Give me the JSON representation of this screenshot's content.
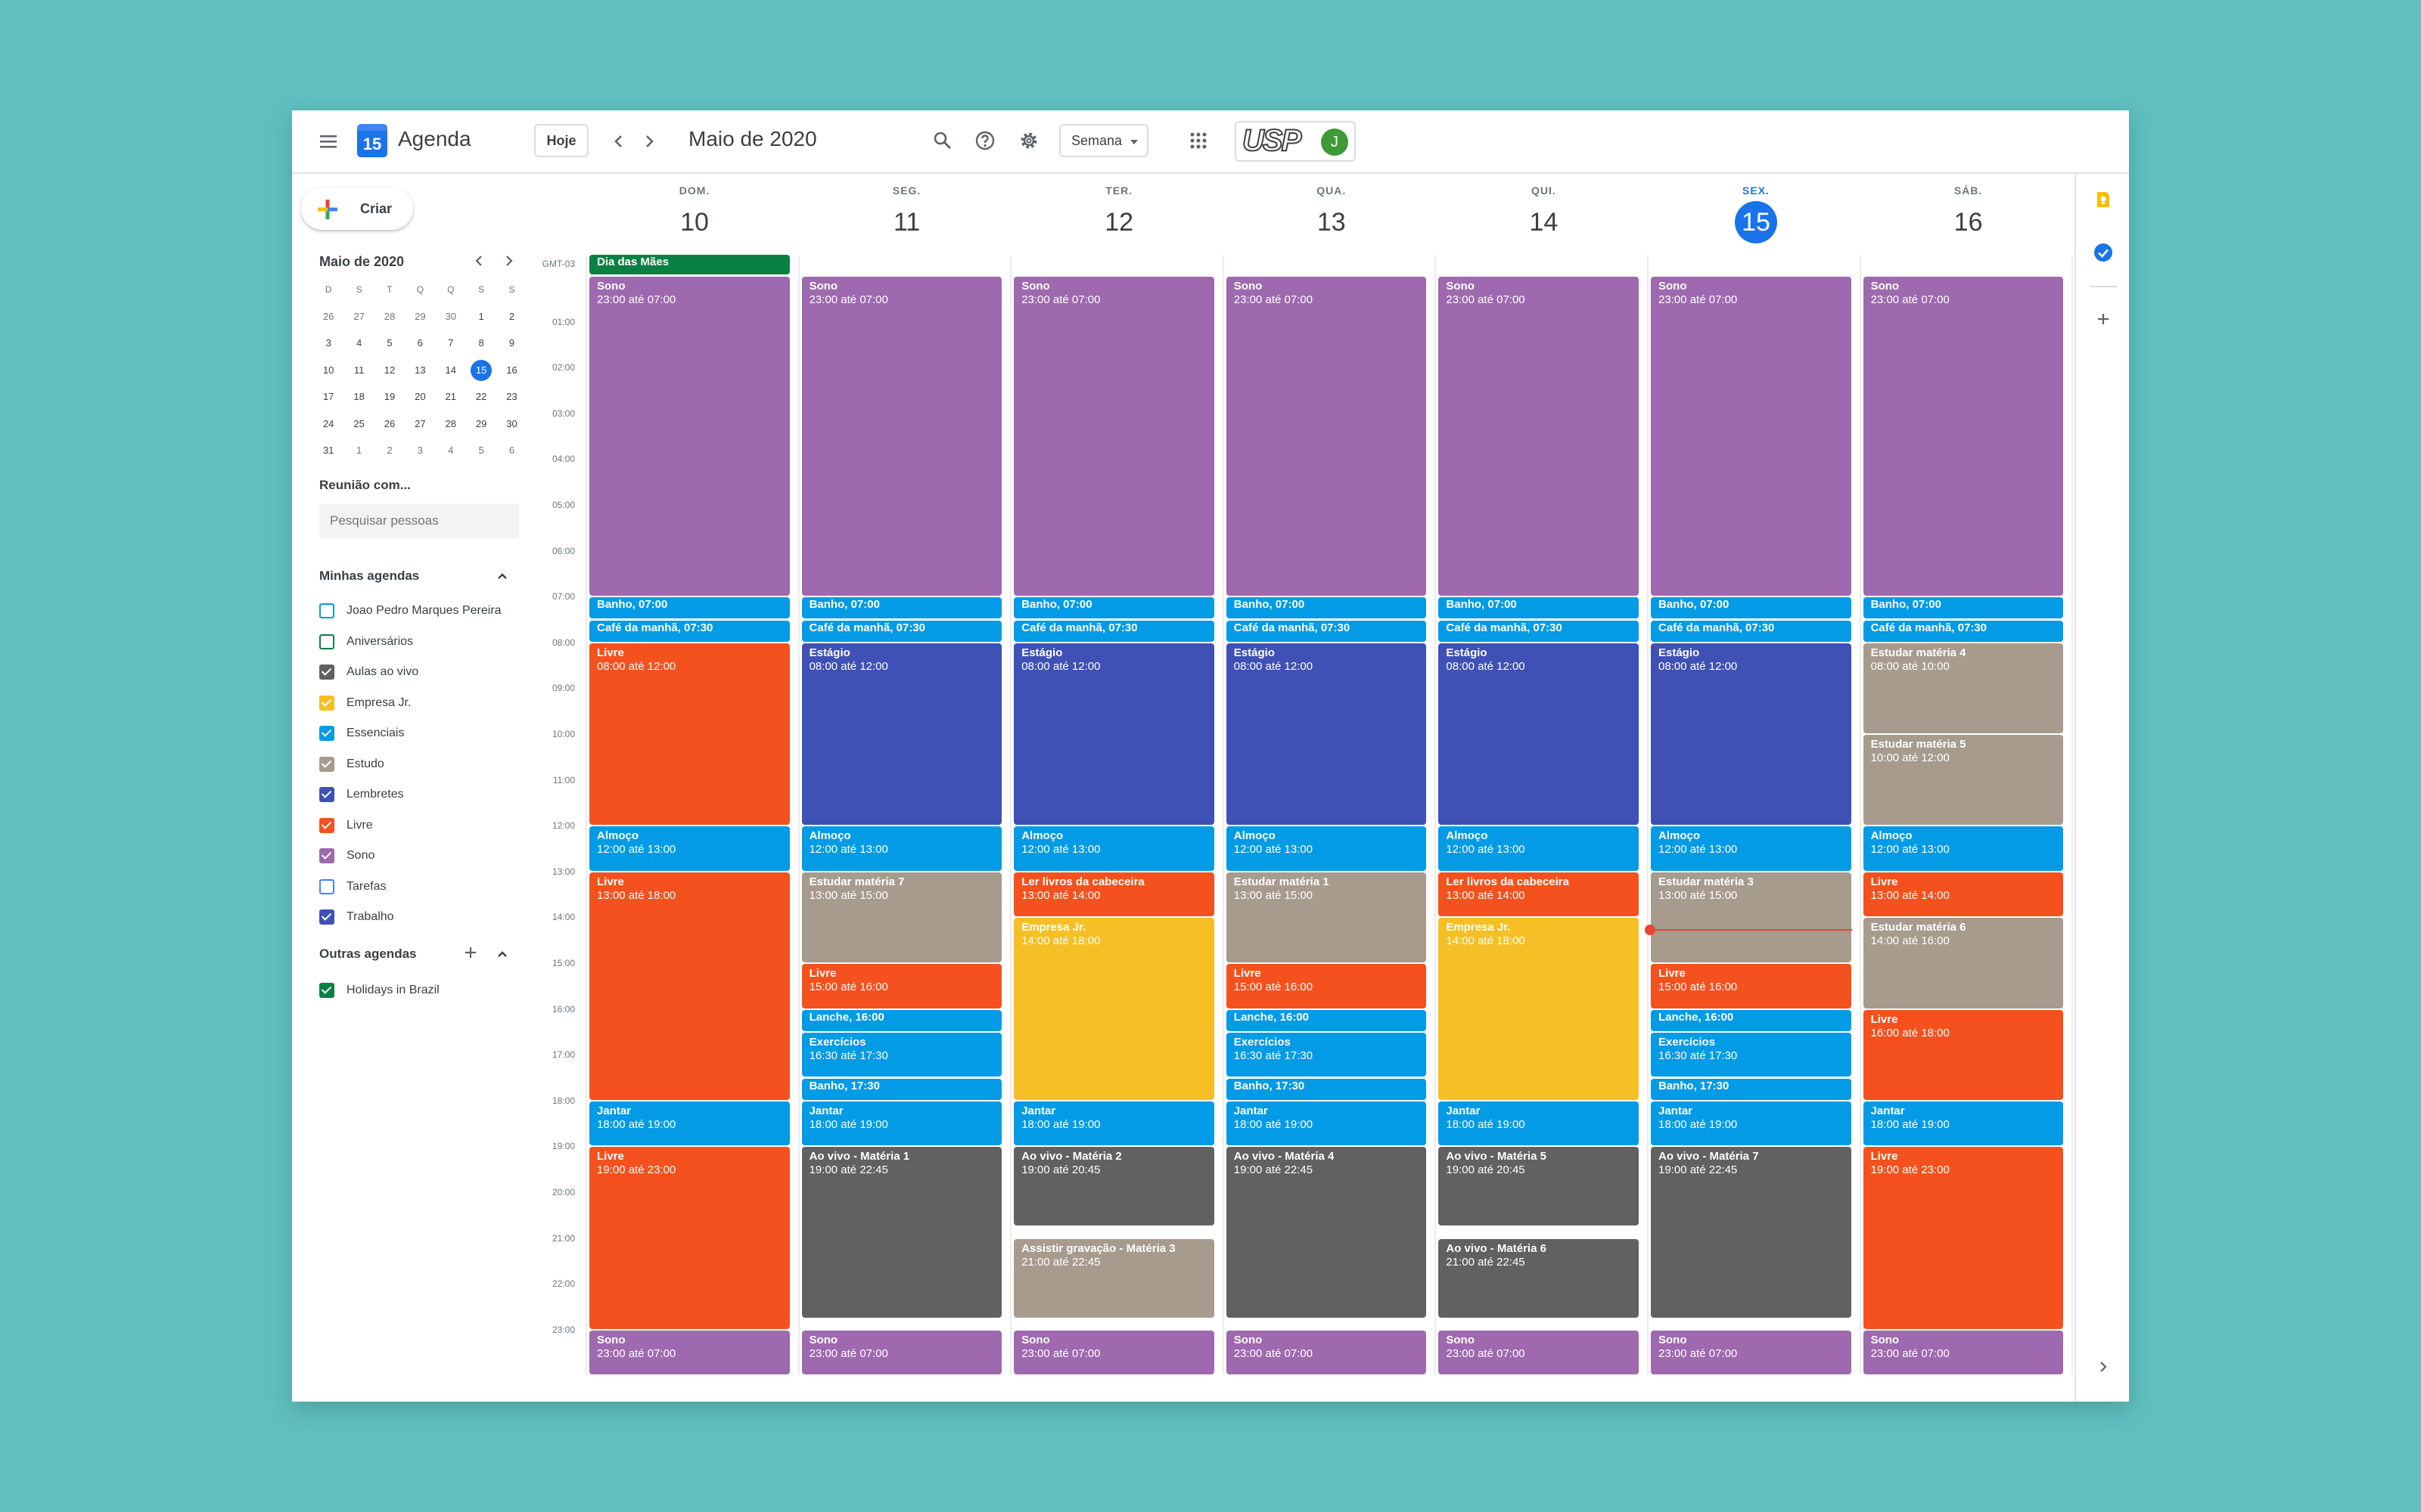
{
  "app": {
    "title": "Agenda",
    "logo_day": "15"
  },
  "header": {
    "today_button": "Hoje",
    "month_title": "Maio de 2020",
    "view_select": "Semana",
    "brand_logo": "USP",
    "avatar_initial": "J"
  },
  "sidebar": {
    "create_label": "Criar",
    "mini_cal": {
      "title": "Maio de 2020",
      "dow": [
        "D",
        "S",
        "T",
        "Q",
        "Q",
        "S",
        "S"
      ],
      "weeks": [
        [
          "26",
          "27",
          "28",
          "29",
          "30",
          "1",
          "2"
        ],
        [
          "3",
          "4",
          "5",
          "6",
          "7",
          "8",
          "9"
        ],
        [
          "10",
          "11",
          "12",
          "13",
          "14",
          "15",
          "16"
        ],
        [
          "17",
          "18",
          "19",
          "20",
          "21",
          "22",
          "23"
        ],
        [
          "24",
          "25",
          "26",
          "27",
          "28",
          "29",
          "30"
        ],
        [
          "31",
          "1",
          "2",
          "3",
          "4",
          "5",
          "6"
        ]
      ],
      "today": "15"
    },
    "meet_title": "Reunião com...",
    "search_placeholder": "Pesquisar pessoas",
    "my_calendars_title": "Minhas agendas",
    "my_calendars": [
      {
        "label": "Joao Pedro Marques Pereira",
        "color": "#039be5",
        "checked": false
      },
      {
        "label": "Aniversários",
        "color": "#0b8043",
        "checked": false
      },
      {
        "label": "Aulas ao vivo",
        "color": "#616161",
        "checked": true
      },
      {
        "label": "Empresa Jr.",
        "color": "#f6bf26",
        "checked": true
      },
      {
        "label": "Essenciais",
        "color": "#039be5",
        "checked": true
      },
      {
        "label": "Estudo",
        "color": "#a79b8e",
        "checked": true
      },
      {
        "label": "Lembretes",
        "color": "#3f51b5",
        "checked": true
      },
      {
        "label": "Livre",
        "color": "#f4511e",
        "checked": true
      },
      {
        "label": "Sono",
        "color": "#9e69af",
        "checked": true
      },
      {
        "label": "Tarefas",
        "color": "#4285f4",
        "checked": false
      },
      {
        "label": "Trabalho",
        "color": "#3f51b5",
        "checked": true
      }
    ],
    "other_calendars_title": "Outras agendas",
    "other_calendars": [
      {
        "label": "Holidays in Brazil",
        "color": "#0b8043",
        "checked": true
      }
    ]
  },
  "week": {
    "timezone": "GMT-03",
    "days": [
      {
        "dow": "DOM.",
        "num": "10",
        "today": false
      },
      {
        "dow": "SEG.",
        "num": "11",
        "today": false
      },
      {
        "dow": "TER.",
        "num": "12",
        "today": false
      },
      {
        "dow": "QUA.",
        "num": "13",
        "today": false
      },
      {
        "dow": "QUI.",
        "num": "14",
        "today": false
      },
      {
        "dow": "SEX.",
        "num": "15",
        "today": true
      },
      {
        "dow": "SÁB.",
        "num": "16",
        "today": false
      }
    ],
    "hours": [
      "01:00",
      "02:00",
      "03:00",
      "04:00",
      "05:00",
      "06:00",
      "07:00",
      "08:00",
      "09:00",
      "10:00",
      "11:00",
      "12:00",
      "13:00",
      "14:00",
      "15:00",
      "16:00",
      "17:00",
      "18:00",
      "19:00",
      "20:00",
      "21:00",
      "22:00",
      "23:00"
    ],
    "current_time": "14:15",
    "all_day": [
      {
        "day": 0,
        "title": "Dia das Mães",
        "color": "#0b8043"
      }
    ],
    "events": [
      {
        "day": 0,
        "start": 0,
        "end": 7,
        "title": "Sono",
        "time": "23:00 até 07:00",
        "color": "#9e69af"
      },
      {
        "day": 0,
        "start": 7,
        "end": 7.5,
        "title": "Banho, 07:00",
        "time": "",
        "color": "#039be5"
      },
      {
        "day": 0,
        "start": 7.5,
        "end": 8,
        "title": "Café da manhã, 07:30",
        "time": "",
        "color": "#039be5"
      },
      {
        "day": 0,
        "start": 8,
        "end": 12,
        "title": "Livre",
        "time": "08:00 até 12:00",
        "color": "#f4511e"
      },
      {
        "day": 0,
        "start": 12,
        "end": 13,
        "title": "Almoço",
        "time": "12:00 até 13:00",
        "color": "#039be5"
      },
      {
        "day": 0,
        "start": 13,
        "end": 18,
        "title": "Livre",
        "time": "13:00 até 18:00",
        "color": "#f4511e"
      },
      {
        "day": 0,
        "start": 18,
        "end": 19,
        "title": "Jantar",
        "time": "18:00 até 19:00",
        "color": "#039be5"
      },
      {
        "day": 0,
        "start": 19,
        "end": 23,
        "title": "Livre",
        "time": "19:00 até 23:00",
        "color": "#f4511e"
      },
      {
        "day": 0,
        "start": 23,
        "end": 24,
        "title": "Sono",
        "time": "23:00 até 07:00",
        "color": "#9e69af"
      },
      {
        "day": 1,
        "start": 0,
        "end": 7,
        "title": "Sono",
        "time": "23:00 até 07:00",
        "color": "#9e69af"
      },
      {
        "day": 1,
        "start": 7,
        "end": 7.5,
        "title": "Banho, 07:00",
        "time": "",
        "color": "#039be5"
      },
      {
        "day": 1,
        "start": 7.5,
        "end": 8,
        "title": "Café da manhã, 07:30",
        "time": "",
        "color": "#039be5"
      },
      {
        "day": 1,
        "start": 8,
        "end": 12,
        "title": "Estágio",
        "time": "08:00 até 12:00",
        "color": "#3f51b5"
      },
      {
        "day": 1,
        "start": 12,
        "end": 13,
        "title": "Almoço",
        "time": "12:00 até 13:00",
        "color": "#039be5"
      },
      {
        "day": 1,
        "start": 13,
        "end": 15,
        "title": "Estudar matéria 7",
        "time": "13:00 até 15:00",
        "color": "#a79b8e"
      },
      {
        "day": 1,
        "start": 15,
        "end": 16,
        "title": "Livre",
        "time": "15:00 até 16:00",
        "color": "#f4511e"
      },
      {
        "day": 1,
        "start": 16,
        "end": 16.5,
        "title": "Lanche, 16:00",
        "time": "",
        "color": "#039be5"
      },
      {
        "day": 1,
        "start": 16.5,
        "end": 17.5,
        "title": "Exercícios",
        "time": "16:30 até 17:30",
        "color": "#039be5"
      },
      {
        "day": 1,
        "start": 17.5,
        "end": 18,
        "title": "Banho, 17:30",
        "time": "",
        "color": "#039be5"
      },
      {
        "day": 1,
        "start": 18,
        "end": 19,
        "title": "Jantar",
        "time": "18:00 até 19:00",
        "color": "#039be5"
      },
      {
        "day": 1,
        "start": 19,
        "end": 22.75,
        "title": "Ao vivo - Matéria 1",
        "time": "19:00 até 22:45",
        "color": "#616161"
      },
      {
        "day": 1,
        "start": 23,
        "end": 24,
        "title": "Sono",
        "time": "23:00 até 07:00",
        "color": "#9e69af"
      },
      {
        "day": 2,
        "start": 0,
        "end": 7,
        "title": "Sono",
        "time": "23:00 até 07:00",
        "color": "#9e69af"
      },
      {
        "day": 2,
        "start": 7,
        "end": 7.5,
        "title": "Banho, 07:00",
        "time": "",
        "color": "#039be5"
      },
      {
        "day": 2,
        "start": 7.5,
        "end": 8,
        "title": "Café da manhã, 07:30",
        "time": "",
        "color": "#039be5"
      },
      {
        "day": 2,
        "start": 8,
        "end": 12,
        "title": "Estágio",
        "time": "08:00 até 12:00",
        "color": "#3f51b5"
      },
      {
        "day": 2,
        "start": 12,
        "end": 13,
        "title": "Almoço",
        "time": "12:00 até 13:00",
        "color": "#039be5"
      },
      {
        "day": 2,
        "start": 13,
        "end": 14,
        "title": "Ler livros da cabeceira",
        "time": "13:00 até 14:00",
        "color": "#f4511e"
      },
      {
        "day": 2,
        "start": 14,
        "end": 18,
        "title": "Empresa Jr.",
        "time": "14:00 até 18:00",
        "color": "#f6bf26"
      },
      {
        "day": 2,
        "start": 18,
        "end": 19,
        "title": "Jantar",
        "time": "18:00 até 19:00",
        "color": "#039be5"
      },
      {
        "day": 2,
        "start": 19,
        "end": 20.75,
        "title": "Ao vivo - Matéria 2",
        "time": "19:00 até 20:45",
        "color": "#616161"
      },
      {
        "day": 2,
        "start": 21,
        "end": 22.75,
        "title": "Assistir gravação - Matéria 3",
        "time": "21:00 até 22:45",
        "color": "#a79b8e"
      },
      {
        "day": 2,
        "start": 23,
        "end": 24,
        "title": "Sono",
        "time": "23:00 até 07:00",
        "color": "#9e69af"
      },
      {
        "day": 3,
        "start": 0,
        "end": 7,
        "title": "Sono",
        "time": "23:00 até 07:00",
        "color": "#9e69af"
      },
      {
        "day": 3,
        "start": 7,
        "end": 7.5,
        "title": "Banho, 07:00",
        "time": "",
        "color": "#039be5"
      },
      {
        "day": 3,
        "start": 7.5,
        "end": 8,
        "title": "Café da manhã, 07:30",
        "time": "",
        "color": "#039be5"
      },
      {
        "day": 3,
        "start": 8,
        "end": 12,
        "title": "Estágio",
        "time": "08:00 até 12:00",
        "color": "#3f51b5"
      },
      {
        "day": 3,
        "start": 12,
        "end": 13,
        "title": "Almoço",
        "time": "12:00 até 13:00",
        "color": "#039be5"
      },
      {
        "day": 3,
        "start": 13,
        "end": 15,
        "title": "Estudar matéria 1",
        "time": "13:00 até 15:00",
        "color": "#a79b8e"
      },
      {
        "day": 3,
        "start": 15,
        "end": 16,
        "title": "Livre",
        "time": "15:00 até 16:00",
        "color": "#f4511e"
      },
      {
        "day": 3,
        "start": 16,
        "end": 16.5,
        "title": "Lanche, 16:00",
        "time": "",
        "color": "#039be5"
      },
      {
        "day": 3,
        "start": 16.5,
        "end": 17.5,
        "title": "Exercícios",
        "time": "16:30 até 17:30",
        "color": "#039be5"
      },
      {
        "day": 3,
        "start": 17.5,
        "end": 18,
        "title": "Banho, 17:30",
        "time": "",
        "color": "#039be5"
      },
      {
        "day": 3,
        "start": 18,
        "end": 19,
        "title": "Jantar",
        "time": "18:00 até 19:00",
        "color": "#039be5"
      },
      {
        "day": 3,
        "start": 19,
        "end": 22.75,
        "title": "Ao vivo - Matéria 4",
        "time": "19:00 até 22:45",
        "color": "#616161"
      },
      {
        "day": 3,
        "start": 23,
        "end": 24,
        "title": "Sono",
        "time": "23:00 até 07:00",
        "color": "#9e69af"
      },
      {
        "day": 4,
        "start": 0,
        "end": 7,
        "title": "Sono",
        "time": "23:00 até 07:00",
        "color": "#9e69af"
      },
      {
        "day": 4,
        "start": 7,
        "end": 7.5,
        "title": "Banho, 07:00",
        "time": "",
        "color": "#039be5"
      },
      {
        "day": 4,
        "start": 7.5,
        "end": 8,
        "title": "Café da manhã, 07:30",
        "time": "",
        "color": "#039be5"
      },
      {
        "day": 4,
        "start": 8,
        "end": 12,
        "title": "Estágio",
        "time": "08:00 até 12:00",
        "color": "#3f51b5"
      },
      {
        "day": 4,
        "start": 12,
        "end": 13,
        "title": "Almoço",
        "time": "12:00 até 13:00",
        "color": "#039be5"
      },
      {
        "day": 4,
        "start": 13,
        "end": 14,
        "title": "Ler livros da cabeceira",
        "time": "13:00 até 14:00",
        "color": "#f4511e"
      },
      {
        "day": 4,
        "start": 14,
        "end": 18,
        "title": "Empresa Jr.",
        "time": "14:00 até 18:00",
        "color": "#f6bf26"
      },
      {
        "day": 4,
        "start": 18,
        "end": 19,
        "title": "Jantar",
        "time": "18:00 até 19:00",
        "color": "#039be5"
      },
      {
        "day": 4,
        "start": 19,
        "end": 20.75,
        "title": "Ao vivo - Matéria 5",
        "time": "19:00 até 20:45",
        "color": "#616161"
      },
      {
        "day": 4,
        "start": 21,
        "end": 22.75,
        "title": "Ao vivo - Matéria 6",
        "time": "21:00 até 22:45",
        "color": "#616161"
      },
      {
        "day": 4,
        "start": 23,
        "end": 24,
        "title": "Sono",
        "time": "23:00 até 07:00",
        "color": "#9e69af"
      },
      {
        "day": 5,
        "start": 0,
        "end": 7,
        "title": "Sono",
        "time": "23:00 até 07:00",
        "color": "#9e69af"
      },
      {
        "day": 5,
        "start": 7,
        "end": 7.5,
        "title": "Banho, 07:00",
        "time": "",
        "color": "#039be5"
      },
      {
        "day": 5,
        "start": 7.5,
        "end": 8,
        "title": "Café da manhã, 07:30",
        "time": "",
        "color": "#039be5"
      },
      {
        "day": 5,
        "start": 8,
        "end": 12,
        "title": "Estágio",
        "time": "08:00 até 12:00",
        "color": "#3f51b5"
      },
      {
        "day": 5,
        "start": 12,
        "end": 13,
        "title": "Almoço",
        "time": "12:00 até 13:00",
        "color": "#039be5"
      },
      {
        "day": 5,
        "start": 13,
        "end": 15,
        "title": "Estudar matéria 3",
        "time": "13:00 até 15:00",
        "color": "#a79b8e"
      },
      {
        "day": 5,
        "start": 15,
        "end": 16,
        "title": "Livre",
        "time": "15:00 até 16:00",
        "color": "#f4511e"
      },
      {
        "day": 5,
        "start": 16,
        "end": 16.5,
        "title": "Lanche, 16:00",
        "time": "",
        "color": "#039be5"
      },
      {
        "day": 5,
        "start": 16.5,
        "end": 17.5,
        "title": "Exercícios",
        "time": "16:30 até 17:30",
        "color": "#039be5"
      },
      {
        "day": 5,
        "start": 17.5,
        "end": 18,
        "title": "Banho, 17:30",
        "time": "",
        "color": "#039be5"
      },
      {
        "day": 5,
        "start": 18,
        "end": 19,
        "title": "Jantar",
        "time": "18:00 até 19:00",
        "color": "#039be5"
      },
      {
        "day": 5,
        "start": 19,
        "end": 22.75,
        "title": "Ao vivo - Matéria 7",
        "time": "19:00 até 22:45",
        "color": "#616161"
      },
      {
        "day": 5,
        "start": 23,
        "end": 24,
        "title": "Sono",
        "time": "23:00 até 07:00",
        "color": "#9e69af"
      },
      {
        "day": 6,
        "start": 0,
        "end": 7,
        "title": "Sono",
        "time": "23:00 até 07:00",
        "color": "#9e69af"
      },
      {
        "day": 6,
        "start": 7,
        "end": 7.5,
        "title": "Banho, 07:00",
        "time": "",
        "color": "#039be5"
      },
      {
        "day": 6,
        "start": 7.5,
        "end": 8,
        "title": "Café da manhã, 07:30",
        "time": "",
        "color": "#039be5"
      },
      {
        "day": 6,
        "start": 8,
        "end": 10,
        "title": "Estudar matéria 4",
        "time": "08:00 até 10:00",
        "color": "#a79b8e"
      },
      {
        "day": 6,
        "start": 10,
        "end": 12,
        "title": "Estudar matéria 5",
        "time": "10:00 até 12:00",
        "color": "#a79b8e"
      },
      {
        "day": 6,
        "start": 12,
        "end": 13,
        "title": "Almoço",
        "time": "12:00 até 13:00",
        "color": "#039be5"
      },
      {
        "day": 6,
        "start": 13,
        "end": 14,
        "title": "Livre",
        "time": "13:00 até 14:00",
        "color": "#f4511e"
      },
      {
        "day": 6,
        "start": 14,
        "end": 16,
        "title": "Estudar matéria 6",
        "time": "14:00 até 16:00",
        "color": "#a79b8e"
      },
      {
        "day": 6,
        "start": 16,
        "end": 18,
        "title": "Livre",
        "time": "16:00 até 18:00",
        "color": "#f4511e"
      },
      {
        "day": 6,
        "start": 18,
        "end": 19,
        "title": "Jantar",
        "time": "18:00 até 19:00",
        "color": "#039be5"
      },
      {
        "day": 6,
        "start": 19,
        "end": 23,
        "title": "Livre",
        "time": "19:00 até 23:00",
        "color": "#f4511e"
      },
      {
        "day": 6,
        "start": 23,
        "end": 24,
        "title": "Sono",
        "time": "23:00 até 07:00",
        "color": "#9e69af"
      }
    ]
  }
}
